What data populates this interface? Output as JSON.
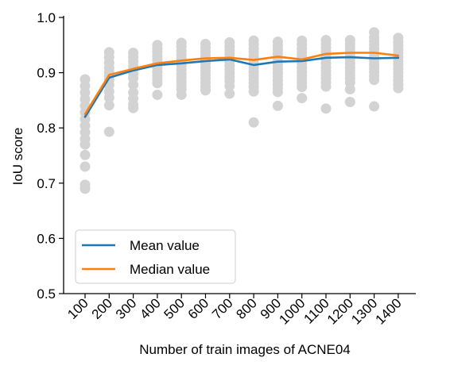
{
  "chart_data": {
    "type": "line",
    "title": "",
    "xlabel": "Number of train images of ACNE04",
    "ylabel": "IoU score",
    "categories": [
      "100",
      "200",
      "300",
      "400",
      "500",
      "600",
      "700",
      "800",
      "900",
      "1000",
      "1100",
      "1200",
      "1300",
      "1400"
    ],
    "ylim": [
      0.5,
      1.0
    ],
    "yticks": [
      "0.5",
      "0.6",
      "0.7",
      "0.8",
      "0.9",
      "1.0"
    ],
    "grid": false,
    "legend_position": "lower-left",
    "series": [
      {
        "name": "Mean value",
        "color": "#1f77b4",
        "values": [
          0.82,
          0.891,
          0.904,
          0.914,
          0.917,
          0.921,
          0.924,
          0.914,
          0.92,
          0.921,
          0.927,
          0.928,
          0.926,
          0.927
        ]
      },
      {
        "name": "Median value",
        "color": "#ff7f0e",
        "values": [
          0.825,
          0.896,
          0.907,
          0.917,
          0.922,
          0.926,
          0.927,
          0.923,
          0.929,
          0.924,
          0.934,
          0.936,
          0.936,
          0.931
        ]
      }
    ],
    "scatter": {
      "color": "#d3d3d3",
      "points": [
        [
          0.888,
          0.876,
          0.864,
          0.852,
          0.84,
          0.828,
          0.816,
          0.804,
          0.792,
          0.78,
          0.77,
          0.751,
          0.73,
          0.697,
          0.69
        ],
        [
          0.937,
          0.928,
          0.918,
          0.909,
          0.901,
          0.894,
          0.887,
          0.878,
          0.866,
          0.855,
          0.841,
          0.793
        ],
        [
          0.936,
          0.928,
          0.92,
          0.912,
          0.905,
          0.898,
          0.89,
          0.878,
          0.864,
          0.853,
          0.842,
          0.836
        ],
        [
          0.95,
          0.944,
          0.937,
          0.93,
          0.923,
          0.916,
          0.909,
          0.902,
          0.895,
          0.888,
          0.881,
          0.86
        ],
        [
          0.954,
          0.947,
          0.94,
          0.933,
          0.926,
          0.919,
          0.912,
          0.905,
          0.898,
          0.891,
          0.884,
          0.877,
          0.87,
          0.86
        ],
        [
          0.952,
          0.945,
          0.938,
          0.931,
          0.924,
          0.917,
          0.91,
          0.903,
          0.896,
          0.889,
          0.882,
          0.875,
          0.868
        ],
        [
          0.955,
          0.948,
          0.941,
          0.934,
          0.927,
          0.92,
          0.913,
          0.906,
          0.899,
          0.892,
          0.885,
          0.876,
          0.862
        ],
        [
          0.958,
          0.951,
          0.944,
          0.937,
          0.93,
          0.923,
          0.916,
          0.909,
          0.902,
          0.895,
          0.888,
          0.881,
          0.874,
          0.866,
          0.81
        ],
        [
          0.956,
          0.949,
          0.942,
          0.935,
          0.928,
          0.921,
          0.914,
          0.907,
          0.9,
          0.893,
          0.886,
          0.879,
          0.872,
          0.865,
          0.84
        ],
        [
          0.958,
          0.951,
          0.944,
          0.937,
          0.93,
          0.923,
          0.916,
          0.909,
          0.902,
          0.895,
          0.888,
          0.881,
          0.874,
          0.854
        ],
        [
          0.959,
          0.952,
          0.945,
          0.938,
          0.931,
          0.924,
          0.917,
          0.91,
          0.903,
          0.896,
          0.889,
          0.882,
          0.875,
          0.835
        ],
        [
          0.959,
          0.952,
          0.945,
          0.938,
          0.931,
          0.924,
          0.917,
          0.91,
          0.903,
          0.896,
          0.889,
          0.882,
          0.87,
          0.847
        ],
        [
          0.973,
          0.964,
          0.957,
          0.95,
          0.943,
          0.936,
          0.929,
          0.922,
          0.915,
          0.908,
          0.901,
          0.894,
          0.887,
          0.839
        ],
        [
          0.963,
          0.956,
          0.949,
          0.942,
          0.935,
          0.928,
          0.921,
          0.914,
          0.907,
          0.9,
          0.893,
          0.886,
          0.879,
          0.872
        ]
      ]
    }
  }
}
